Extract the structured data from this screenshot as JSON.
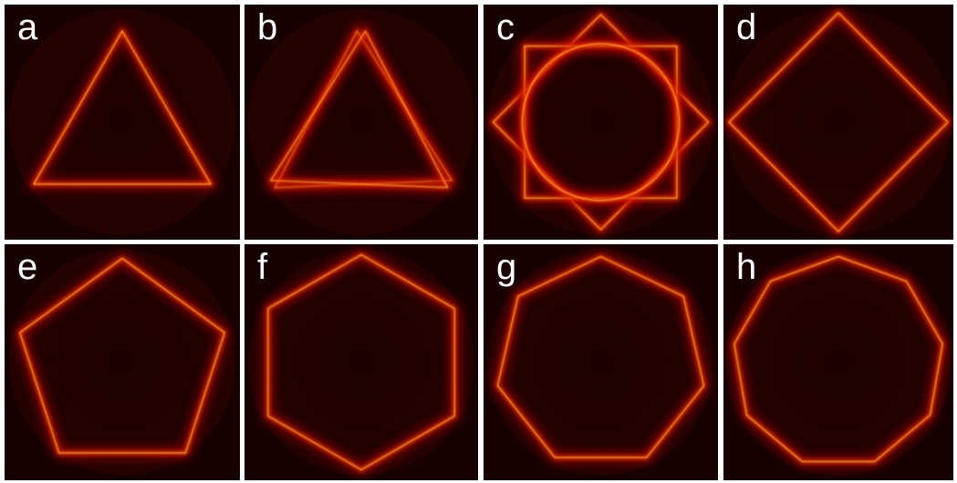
{
  "panels": [
    {
      "label": "a"
    },
    {
      "label": "b"
    },
    {
      "label": "c"
    },
    {
      "label": "d"
    },
    {
      "label": "e"
    },
    {
      "label": "f"
    },
    {
      "label": "g"
    },
    {
      "label": "h"
    }
  ]
}
